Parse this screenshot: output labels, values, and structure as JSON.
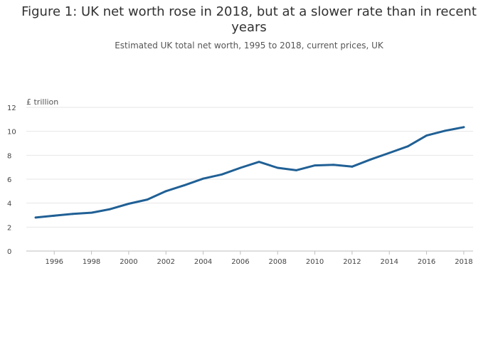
{
  "title": "Figure 1: UK net worth rose in 2018, but at a slower rate than in recent years",
  "subtitle": "Estimated UK total net worth, 1995 to 2018, current prices, UK",
  "colors": {
    "line": "#206095",
    "grid": "#e6e6e6",
    "axis": "#bebebe"
  },
  "chart_data": {
    "type": "line",
    "title": "Figure 1: UK net worth rose in 2018, but at a slower rate than in recent years",
    "subtitle": "Estimated UK total net worth, 1995 to 2018, current prices, UK",
    "xlabel": "",
    "ylabel": "£ trillion",
    "xlim": [
      1994.5,
      2018.5
    ],
    "ylim": [
      0,
      12
    ],
    "x_ticks": [
      1996,
      1998,
      2000,
      2002,
      2004,
      2006,
      2008,
      2010,
      2012,
      2014,
      2016,
      2018
    ],
    "y_ticks": [
      0,
      2,
      4,
      6,
      8,
      10,
      12
    ],
    "grid": true,
    "legend": "none",
    "series": [
      {
        "x": [
          1995,
          1996,
          1997,
          1998,
          1999,
          2000,
          2001,
          2002,
          2003,
          2004,
          2005,
          2006,
          2007,
          2008,
          2009,
          2010,
          2011,
          2012,
          2013,
          2014,
          2015,
          2016,
          2017,
          2018
        ],
        "values": [
          2.8,
          2.95,
          3.1,
          3.2,
          3.5,
          3.95,
          4.3,
          5.0,
          5.5,
          6.05,
          6.4,
          6.95,
          7.45,
          6.95,
          6.75,
          7.15,
          7.2,
          7.05,
          7.65,
          8.2,
          8.75,
          9.65,
          10.05,
          10.35
        ]
      }
    ]
  }
}
